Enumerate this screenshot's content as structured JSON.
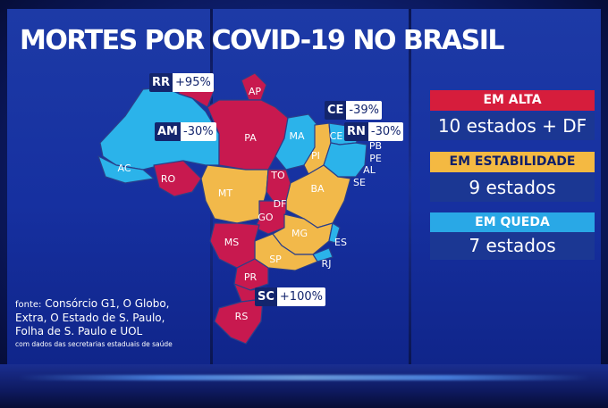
{
  "title": "MORTES POR COVID-19 NO BRASIL",
  "colors": {
    "em_alta": "#c8194f",
    "em_estabilidade": "#f2b94a",
    "em_queda": "#2bb3ea",
    "panel_blue": "#1b3793"
  },
  "legend": [
    {
      "label": "EM ALTA",
      "value": "10 estados + DF",
      "color": "#d61d3c"
    },
    {
      "label": "EM ESTABILIDADE",
      "value": "9 estados",
      "color": "#f4b942"
    },
    {
      "label": "EM QUEDA",
      "value": "7 estados",
      "color": "#29a8e6"
    }
  ],
  "badges": [
    {
      "state": "RR",
      "value": "+95%"
    },
    {
      "state": "AM",
      "value": "-30%"
    },
    {
      "state": "CE",
      "value": "-39%"
    },
    {
      "state": "RN",
      "value": "-30%"
    },
    {
      "state": "SC",
      "value": "+100%"
    }
  ],
  "state_labels": [
    "AP",
    "PA",
    "MA",
    "CE",
    "PI",
    "PB",
    "PE",
    "AL",
    "SE",
    "BA",
    "TO",
    "DF",
    "GO",
    "MT",
    "MG",
    "ES",
    "RJ",
    "SP",
    "MS",
    "PR",
    "RS",
    "AC",
    "RO"
  ],
  "source": {
    "head": "fonte:",
    "lines": [
      "Consórcio G1, O Globo,",
      "Extra, O Estado de S. Paulo,",
      "Folha de S. Paulo e UOL"
    ],
    "note": "com dados das secretarias estaduais de saúde"
  }
}
